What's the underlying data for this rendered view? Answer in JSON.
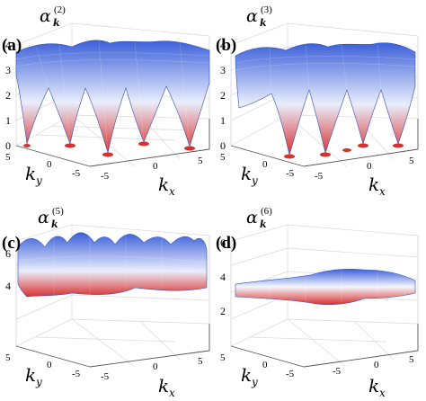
{
  "chart_data": [
    {
      "type": "surface",
      "panel_label": "(a)",
      "title": {
        "symbol": "α",
        "subscript": "k",
        "superscript": "(2)"
      },
      "xlabel": {
        "symbol": "k",
        "subscript": "x"
      },
      "ylabel": {
        "symbol": "k",
        "subscript": "y"
      },
      "x_ticks": [
        "-5",
        "0",
        "5"
      ],
      "y_ticks": [
        "5",
        "0",
        "-5"
      ],
      "z_ticks": [
        "0",
        "1",
        "2",
        "3",
        "4"
      ],
      "zlim": [
        0,
        4.3
      ],
      "surface_range": [
        0,
        4.0
      ],
      "zero_points": 5,
      "colors": {
        "high": "#3b5fd9",
        "mid": "#e9eefc",
        "low": "#d9302c"
      }
    },
    {
      "type": "surface",
      "panel_label": "(b)",
      "title": {
        "symbol": "α",
        "subscript": "k",
        "superscript": "(3)"
      },
      "xlabel": {
        "symbol": "k",
        "subscript": "x"
      },
      "ylabel": {
        "symbol": "k",
        "subscript": "y"
      },
      "x_ticks": [
        "-5",
        "0",
        "5"
      ],
      "y_ticks": [
        "5",
        "0",
        "-5"
      ],
      "z_ticks": [
        "0",
        "1",
        "2",
        "3",
        "4"
      ],
      "zlim": [
        0,
        4.3
      ],
      "surface_range": [
        0,
        4.0
      ],
      "zero_points": 5,
      "colors": {
        "high": "#3b5fd9",
        "mid": "#e9eefc",
        "low": "#d9302c"
      }
    },
    {
      "type": "surface",
      "panel_label": "(c)",
      "title": {
        "symbol": "α",
        "subscript": "k",
        "superscript": "(5)"
      },
      "xlabel": {
        "symbol": "k",
        "subscript": "x"
      },
      "ylabel": {
        "symbol": "k",
        "subscript": "y"
      },
      "x_ticks": [
        "-5",
        "0",
        "5"
      ],
      "y_ticks": [
        "5",
        "0",
        "-5"
      ],
      "z_ticks": [
        "4",
        "6"
      ],
      "zlim": [
        0,
        7
      ],
      "surface_range": [
        3.3,
        6.5
      ],
      "zero_points": 0,
      "colors": {
        "high": "#3b5fd9",
        "mid": "#e9eefc",
        "low": "#d9302c"
      }
    },
    {
      "type": "surface",
      "panel_label": "(d)",
      "title": {
        "symbol": "α",
        "subscript": "k",
        "superscript": "(6)"
      },
      "xlabel": {
        "symbol": "k",
        "subscript": "x"
      },
      "ylabel": {
        "symbol": "k",
        "subscript": "y"
      },
      "x_ticks": [
        "-5",
        "0",
        "5"
      ],
      "y_ticks": [
        "5",
        "0",
        "-5"
      ],
      "z_ticks": [
        "2",
        "4",
        "6"
      ],
      "zlim": [
        0,
        7
      ],
      "surface_range": [
        3.2,
        3.8
      ],
      "zero_points": 0,
      "colors": {
        "high": "#3b5fd9",
        "mid": "#e9eefc",
        "low": "#d9302c"
      }
    }
  ]
}
